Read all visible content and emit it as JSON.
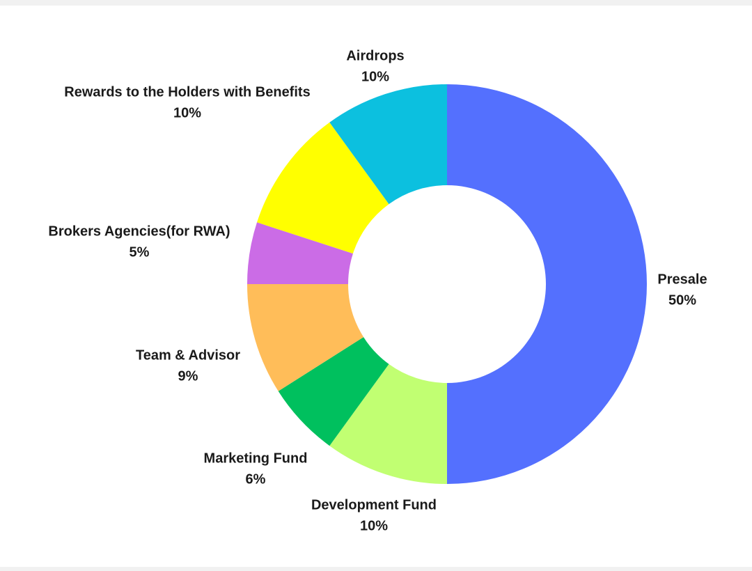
{
  "chart_data": {
    "type": "pie",
    "donut": true,
    "title": "",
    "legend": "none",
    "slices": [
      {
        "label": "Presale",
        "value": 50,
        "value_label": "50%",
        "color": "#5470fe"
      },
      {
        "label": "Development Fund",
        "value": 10,
        "value_label": "10%",
        "color": "#c1ff72"
      },
      {
        "label": "Marketing Fund",
        "value": 6,
        "value_label": "6%",
        "color": "#00c05e"
      },
      {
        "label": "Team & Advisor",
        "value": 9,
        "value_label": "9%",
        "color": "#ffbd59"
      },
      {
        "label": "Brokers Agencies(for RWA)",
        "value": 5,
        "value_label": "5%",
        "color": "#cb6ce6"
      },
      {
        "label": "Rewards to the Holders with Benefits",
        "value": 10,
        "value_label": "10%",
        "color": "#ffff00"
      },
      {
        "label": "Airdrops",
        "value": 10,
        "value_label": "10%",
        "color": "#0cc0df"
      }
    ]
  }
}
